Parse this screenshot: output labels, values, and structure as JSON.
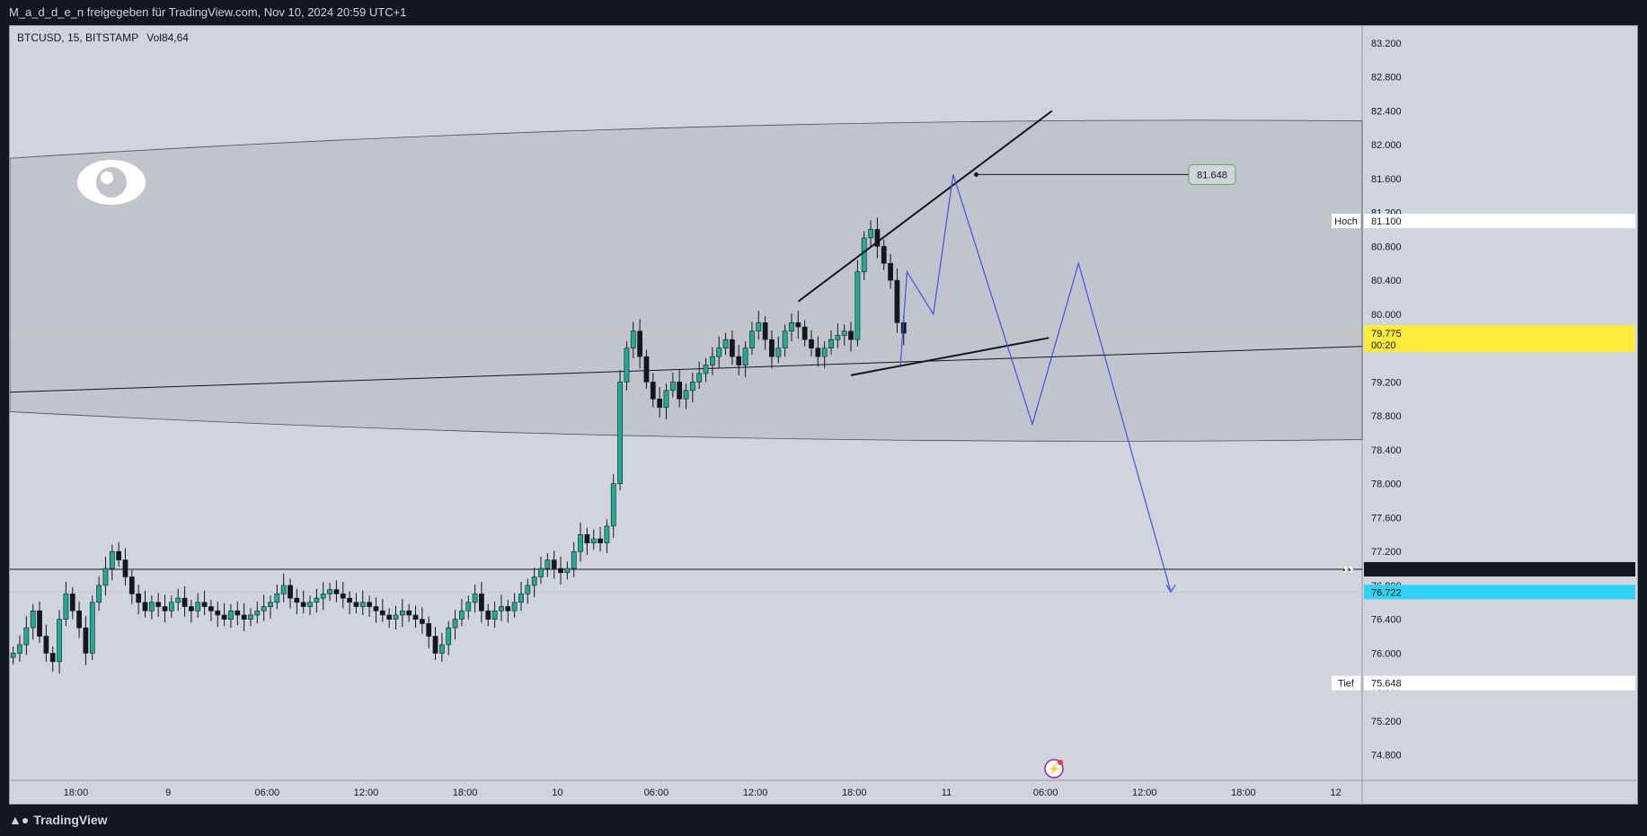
{
  "header": {
    "title": "M_a_d_d_e_n freigegeben für TradingView.com, Nov 10, 2024 20:59 UTC+1"
  },
  "legend": {
    "symbol": "BTCUSD, 15, BITSTAMP",
    "vol_label": "Vol",
    "vol_value": "84,64"
  },
  "footer": {
    "brand": "TradingView",
    "logo_icon": "tradingview-logo-icon"
  },
  "colors": {
    "up": "#22ab94",
    "down": "#131722",
    "blue_path": "#3f51e6",
    "price_badge": "#ffeb3b",
    "cyan_badge": "#2ed3f3"
  },
  "chart_data": {
    "type": "candlestick",
    "symbol": "BTCUSD",
    "interval": "15",
    "exchange": "BITSTAMP",
    "ylim": [
      74.5,
      83.4
    ],
    "y_ticks": [
      "74.800",
      "75.200",
      "75.600",
      "76.000",
      "76.400",
      "76.800",
      "77.200",
      "77.600",
      "78.000",
      "78.400",
      "78.800",
      "79.200",
      "79.600",
      "80.000",
      "80.400",
      "80.800",
      "81.200",
      "81.600",
      "82.000",
      "82.400",
      "82.800",
      "83.200"
    ],
    "x_range": [
      0,
      205
    ],
    "x_ticks": [
      {
        "label": "18:00",
        "x": 10
      },
      {
        "label": "9",
        "x": 24
      },
      {
        "label": "06:00",
        "x": 39
      },
      {
        "label": "12:00",
        "x": 54
      },
      {
        "label": "18:00",
        "x": 69
      },
      {
        "label": "10",
        "x": 83
      },
      {
        "label": "06:00",
        "x": 98
      },
      {
        "label": "12:00",
        "x": 113
      },
      {
        "label": "18:00",
        "x": 128
      },
      {
        "label": "11",
        "x": 142
      },
      {
        "label": "06:00",
        "x": 157
      },
      {
        "label": "12:00",
        "x": 172
      },
      {
        "label": "18:00",
        "x": 187
      },
      {
        "label": "12",
        "x": 201
      }
    ],
    "closes": [
      76.0,
      76.1,
      76.3,
      76.5,
      76.2,
      76.0,
      75.9,
      76.4,
      76.7,
      76.5,
      76.3,
      76.0,
      76.6,
      76.8,
      77.0,
      77.2,
      77.1,
      76.9,
      76.7,
      76.6,
      76.5,
      76.6,
      76.55,
      76.5,
      76.6,
      76.65,
      76.55,
      76.5,
      76.6,
      76.55,
      76.5,
      76.45,
      76.4,
      76.5,
      76.45,
      76.4,
      76.45,
      76.5,
      76.55,
      76.6,
      76.7,
      76.8,
      76.65,
      76.6,
      76.55,
      76.6,
      76.65,
      76.7,
      76.75,
      76.7,
      76.65,
      76.6,
      76.55,
      76.6,
      76.55,
      76.5,
      76.45,
      76.4,
      76.45,
      76.5,
      76.45,
      76.4,
      76.35,
      76.2,
      76.0,
      76.1,
      76.3,
      76.4,
      76.5,
      76.6,
      76.7,
      76.5,
      76.4,
      76.5,
      76.55,
      76.5,
      76.6,
      76.7,
      76.8,
      76.9,
      77.0,
      77.1,
      77.0,
      76.95,
      77.0,
      77.2,
      77.4,
      77.3,
      77.35,
      77.3,
      77.5,
      78.0,
      79.2,
      79.6,
      79.8,
      79.5,
      79.2,
      79.0,
      78.9,
      79.1,
      79.2,
      79.0,
      79.1,
      79.2,
      79.3,
      79.4,
      79.5,
      79.6,
      79.7,
      79.5,
      79.4,
      79.6,
      79.8,
      79.9,
      79.7,
      79.5,
      79.6,
      79.8,
      79.9,
      79.85,
      79.7,
      79.6,
      79.5,
      79.6,
      79.7,
      79.75,
      79.8,
      79.7,
      80.5,
      80.9,
      81.0,
      80.8,
      80.6,
      80.4,
      79.9,
      79.775
    ],
    "last_price": "79.775",
    "countdown": "00:20",
    "price_badges": [
      {
        "label": "Hoch",
        "value": "81.100",
        "y": 81.1
      },
      {
        "label": "",
        "value": "76.990",
        "y": 76.99
      },
      {
        "label": "",
        "value": "76.722",
        "y": 76.722
      },
      {
        "label": "Tief",
        "value": "75.648",
        "y": 75.648
      }
    ],
    "annotation": {
      "label": "81.648",
      "y": 81.648
    },
    "horizontal_line": 76.99,
    "projection_path": [
      [
        135,
        79.4
      ],
      [
        136,
        80.5
      ],
      [
        140,
        80.0
      ],
      [
        143,
        81.648
      ],
      [
        155,
        78.7
      ],
      [
        162,
        80.6
      ],
      [
        176,
        76.722
      ]
    ]
  }
}
